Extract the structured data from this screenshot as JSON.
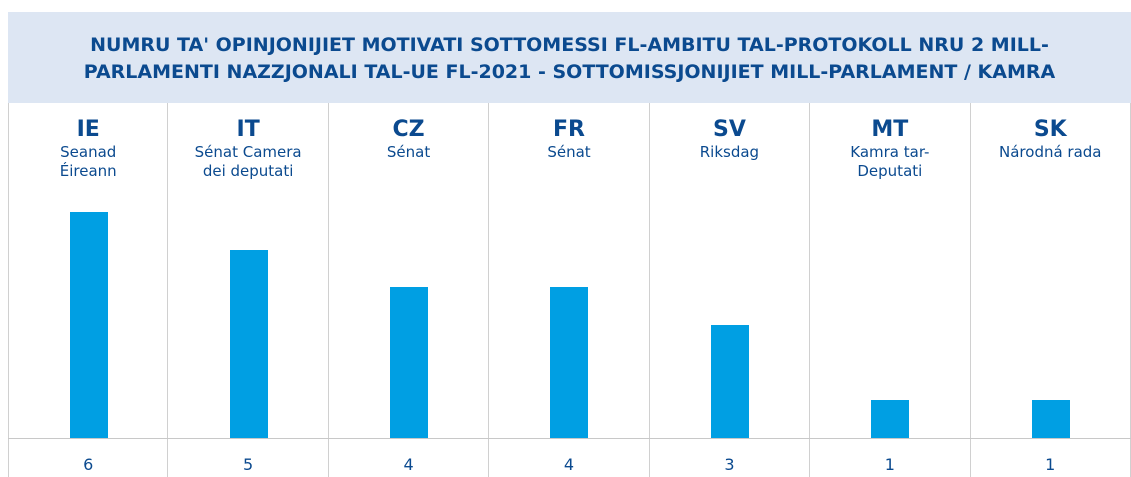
{
  "chart_data": {
    "type": "bar",
    "title": "NUMRU TA' OPINJONIJIET MOTIVATI SOTTOMESSI FL-AMBITU TAL-PROTOKOLL NRU 2 MILL-PARLAMENTI NAZZJONALI TAL-UE FL-2021 - SOTTOMISSJONIJIET MILL-PARLAMENT / KAMRA",
    "categories": [
      "IE",
      "IT",
      "CZ",
      "FR",
      "SV",
      "MT",
      "SK"
    ],
    "chambers": [
      "Seanad Éireann",
      "Sénat Camera dei deputati",
      "Sénat",
      "Sénat",
      "Riksdag",
      "Kamra tar-Deputati",
      "Národná rada"
    ],
    "values": [
      6,
      5,
      4,
      4,
      3,
      1,
      1
    ],
    "color": "#009fe3"
  }
}
